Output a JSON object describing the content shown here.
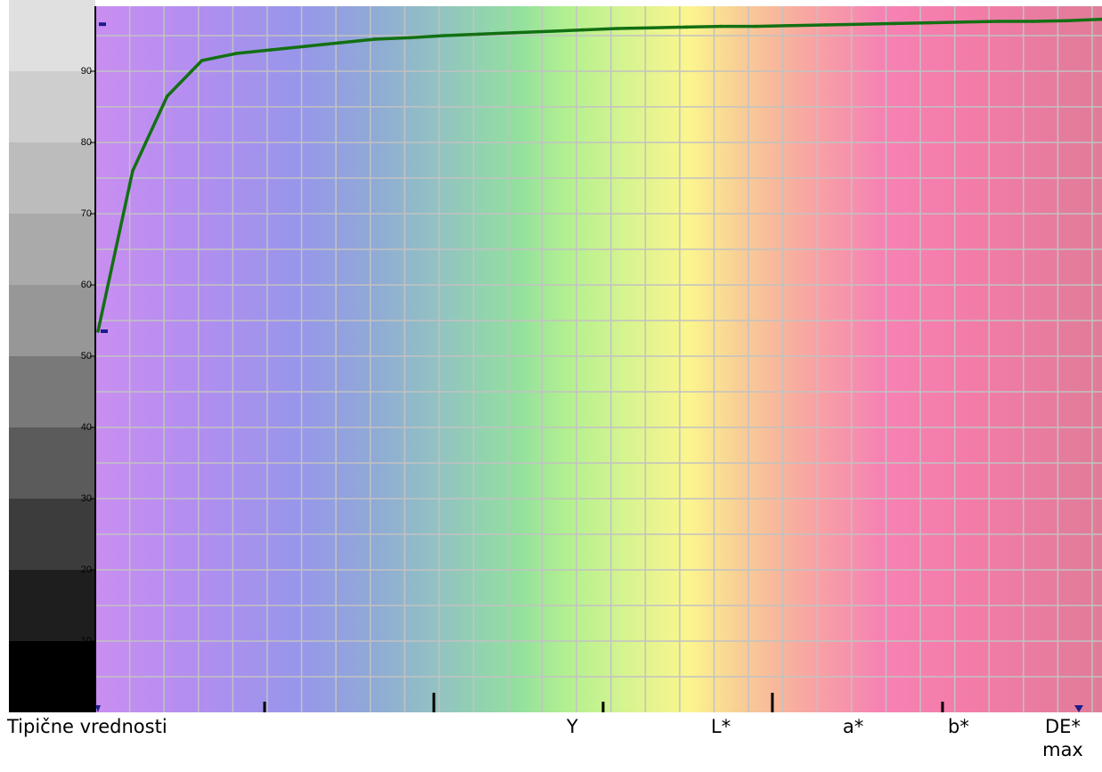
{
  "chart_data": {
    "type": "line",
    "title": "",
    "xlabel": "",
    "ylabel": "",
    "ylim": [
      0,
      97
    ],
    "yticks": [
      0,
      10,
      20,
      30,
      40,
      50,
      60,
      70,
      80,
      90
    ],
    "grid": true,
    "series": [
      {
        "color": "#127012",
        "x": [
          0,
          1,
          2,
          3,
          4,
          5,
          6,
          7,
          8,
          9,
          10,
          11,
          12,
          13,
          14,
          15,
          16,
          17,
          18,
          19,
          20,
          21,
          22,
          23,
          24,
          25,
          26,
          27,
          28,
          29
        ],
        "y": [
          53.5,
          76,
          86.5,
          91.5,
          92.5,
          93,
          93.5,
          94,
          94.5,
          94.7,
          95,
          95.2,
          95.4,
          95.6,
          95.8,
          96,
          96.1,
          96.2,
          96.3,
          96.3,
          96.4,
          96.5,
          96.6,
          96.7,
          96.8,
          96.9,
          97,
          97,
          97.1,
          97.3
        ]
      }
    ]
  },
  "footer": {
    "title": "Tipične vrednosti",
    "col_y": "Y",
    "col_l": "L*",
    "col_a": "a*",
    "col_b": "b*",
    "col_de": "DE* max"
  },
  "colors": {
    "line": "#127012",
    "grid": "#c2c2c2",
    "marker": "#1c1c8c",
    "axis": "#000000"
  }
}
